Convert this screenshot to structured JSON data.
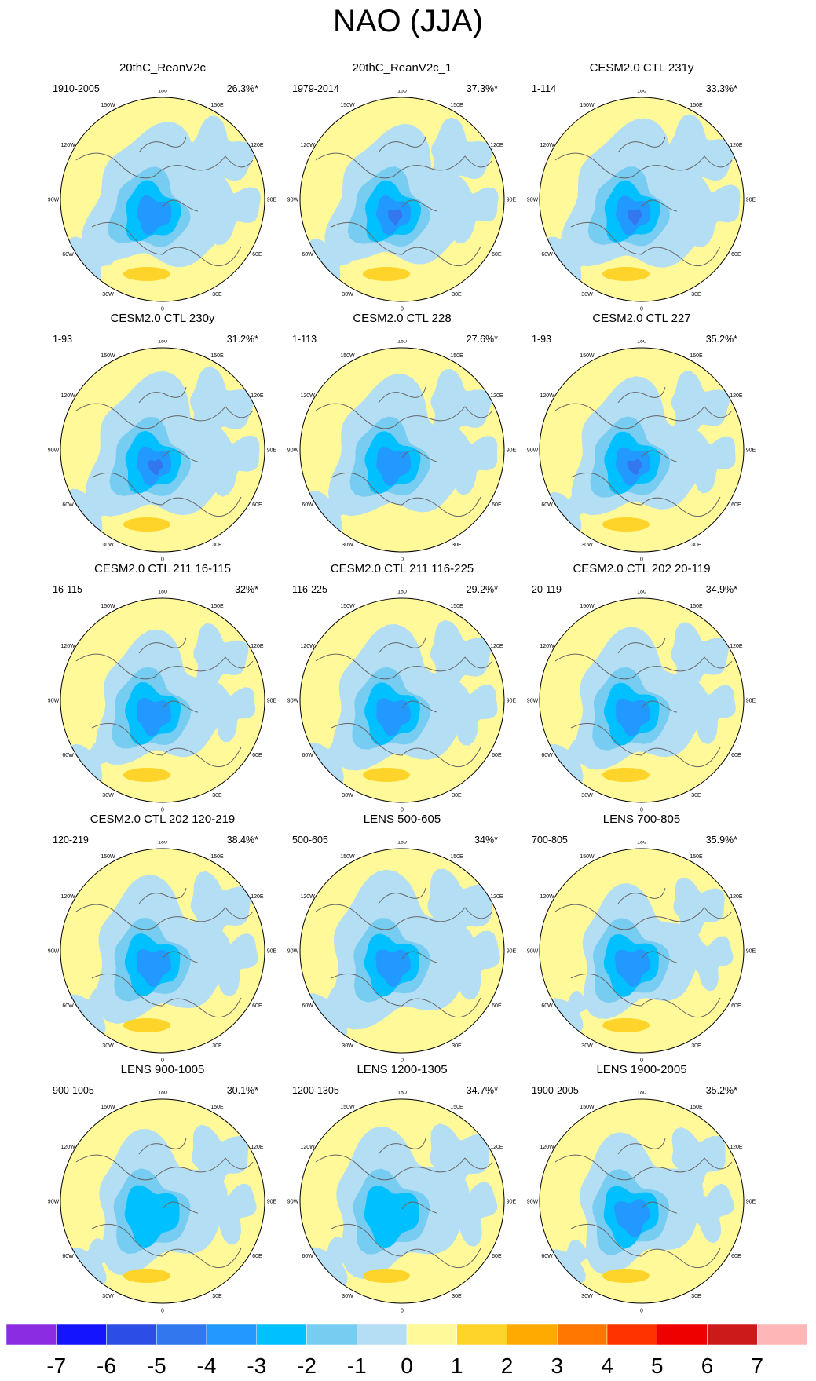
{
  "chart_data": {
    "type": "polar-map-grid",
    "title": "NAO (JJA)",
    "projection": "north-polar-stereographic",
    "longitude_ticks": [
      "180",
      "150E",
      "120E",
      "90E",
      "60E",
      "30E",
      "0",
      "30W",
      "60W",
      "90W",
      "120W",
      "150W"
    ],
    "panels": [
      {
        "title": "20thC_ReanV2c",
        "period": "1910-2005",
        "variance": "26.3%*",
        "pattern": {
          "low_strength": 2,
          "high_strength": 1,
          "blue_coverage": 0.55,
          "shift": 0.0
        }
      },
      {
        "title": "20thC_ReanV2c_1",
        "period": "1979-2014",
        "variance": "37.3%*",
        "pattern": {
          "low_strength": 3,
          "high_strength": 1,
          "blue_coverage": 0.5,
          "shift": 0.1
        }
      },
      {
        "title": "CESM2.0 CTL 231y",
        "period": "1-114",
        "variance": "33.3%*",
        "pattern": {
          "low_strength": 3,
          "high_strength": 1,
          "blue_coverage": 0.6,
          "shift": 0.2
        }
      },
      {
        "title": "CESM2.0 CTL 230y",
        "period": "1-93",
        "variance": "31.2%*",
        "pattern": {
          "low_strength": 3,
          "high_strength": 1,
          "blue_coverage": 0.55,
          "shift": 0.3
        }
      },
      {
        "title": "CESM2.0 CTL 228",
        "period": "1-113",
        "variance": "27.6%*",
        "pattern": {
          "low_strength": 2,
          "high_strength": 0,
          "blue_coverage": 0.5,
          "shift": 0.4
        }
      },
      {
        "title": "CESM2.0 CTL 227",
        "period": "1-93",
        "variance": "35.2%*",
        "pattern": {
          "low_strength": 3,
          "high_strength": 1,
          "blue_coverage": 0.45,
          "shift": 0.5
        }
      },
      {
        "title": "CESM2.0 CTL 211 16-115",
        "period": "16-115",
        "variance": "32%*",
        "pattern": {
          "low_strength": 2,
          "high_strength": 1,
          "blue_coverage": 0.4,
          "shift": 0.6
        }
      },
      {
        "title": "CESM2.0 CTL 211 116-225",
        "period": "116-225",
        "variance": "29.2%*",
        "pattern": {
          "low_strength": 2,
          "high_strength": 1,
          "blue_coverage": 0.5,
          "shift": 0.7
        }
      },
      {
        "title": "CESM2.0 CTL 202 20-119",
        "period": "20-119",
        "variance": "34.9%*",
        "pattern": {
          "low_strength": 2,
          "high_strength": 1,
          "blue_coverage": 0.45,
          "shift": 0.8
        }
      },
      {
        "title": "CESM2.0 CTL 202 120-219",
        "period": "120-219",
        "variance": "38.4%*",
        "pattern": {
          "low_strength": 2,
          "high_strength": 1,
          "blue_coverage": 0.5,
          "shift": 0.9
        }
      },
      {
        "title": "LENS 500-605",
        "period": "500-605",
        "variance": "34%*",
        "pattern": {
          "low_strength": 2,
          "high_strength": 0,
          "blue_coverage": 0.6,
          "shift": 1.0
        }
      },
      {
        "title": "LENS 700-805",
        "period": "700-805",
        "variance": "35.9%*",
        "pattern": {
          "low_strength": 2,
          "high_strength": 1,
          "blue_coverage": 0.35,
          "shift": 1.1
        }
      },
      {
        "title": "LENS 900-1005",
        "period": "900-1005",
        "variance": "30.1%*",
        "pattern": {
          "low_strength": 1,
          "high_strength": 1,
          "blue_coverage": 0.45,
          "shift": 1.2
        }
      },
      {
        "title": "LENS 1200-1305",
        "period": "1200-1305",
        "variance": "34.7%*",
        "pattern": {
          "low_strength": 1,
          "high_strength": 1,
          "blue_coverage": 0.5,
          "shift": 1.3
        }
      },
      {
        "title": "LENS 1900-2005",
        "period": "1900-2005",
        "variance": "35.2%*",
        "pattern": {
          "low_strength": 2,
          "high_strength": 1,
          "blue_coverage": 0.4,
          "shift": 1.4
        }
      }
    ],
    "colorbar": {
      "labels": [
        "-7",
        "-6",
        "-5",
        "-4",
        "-3",
        "-2",
        "-1",
        "0",
        "1",
        "2",
        "3",
        "4",
        "5",
        "6",
        "7"
      ],
      "colors": [
        "#8b2be2",
        "#1414ff",
        "#2c4de6",
        "#3377ee",
        "#2299ff",
        "#00c0ff",
        "#77ccf2",
        "#b4def4",
        "#fff999",
        "#ffd42a",
        "#ffaa00",
        "#ff7700",
        "#ff3300",
        "#ee0000",
        "#cc1a1a",
        "#ffb6b6"
      ]
    }
  }
}
